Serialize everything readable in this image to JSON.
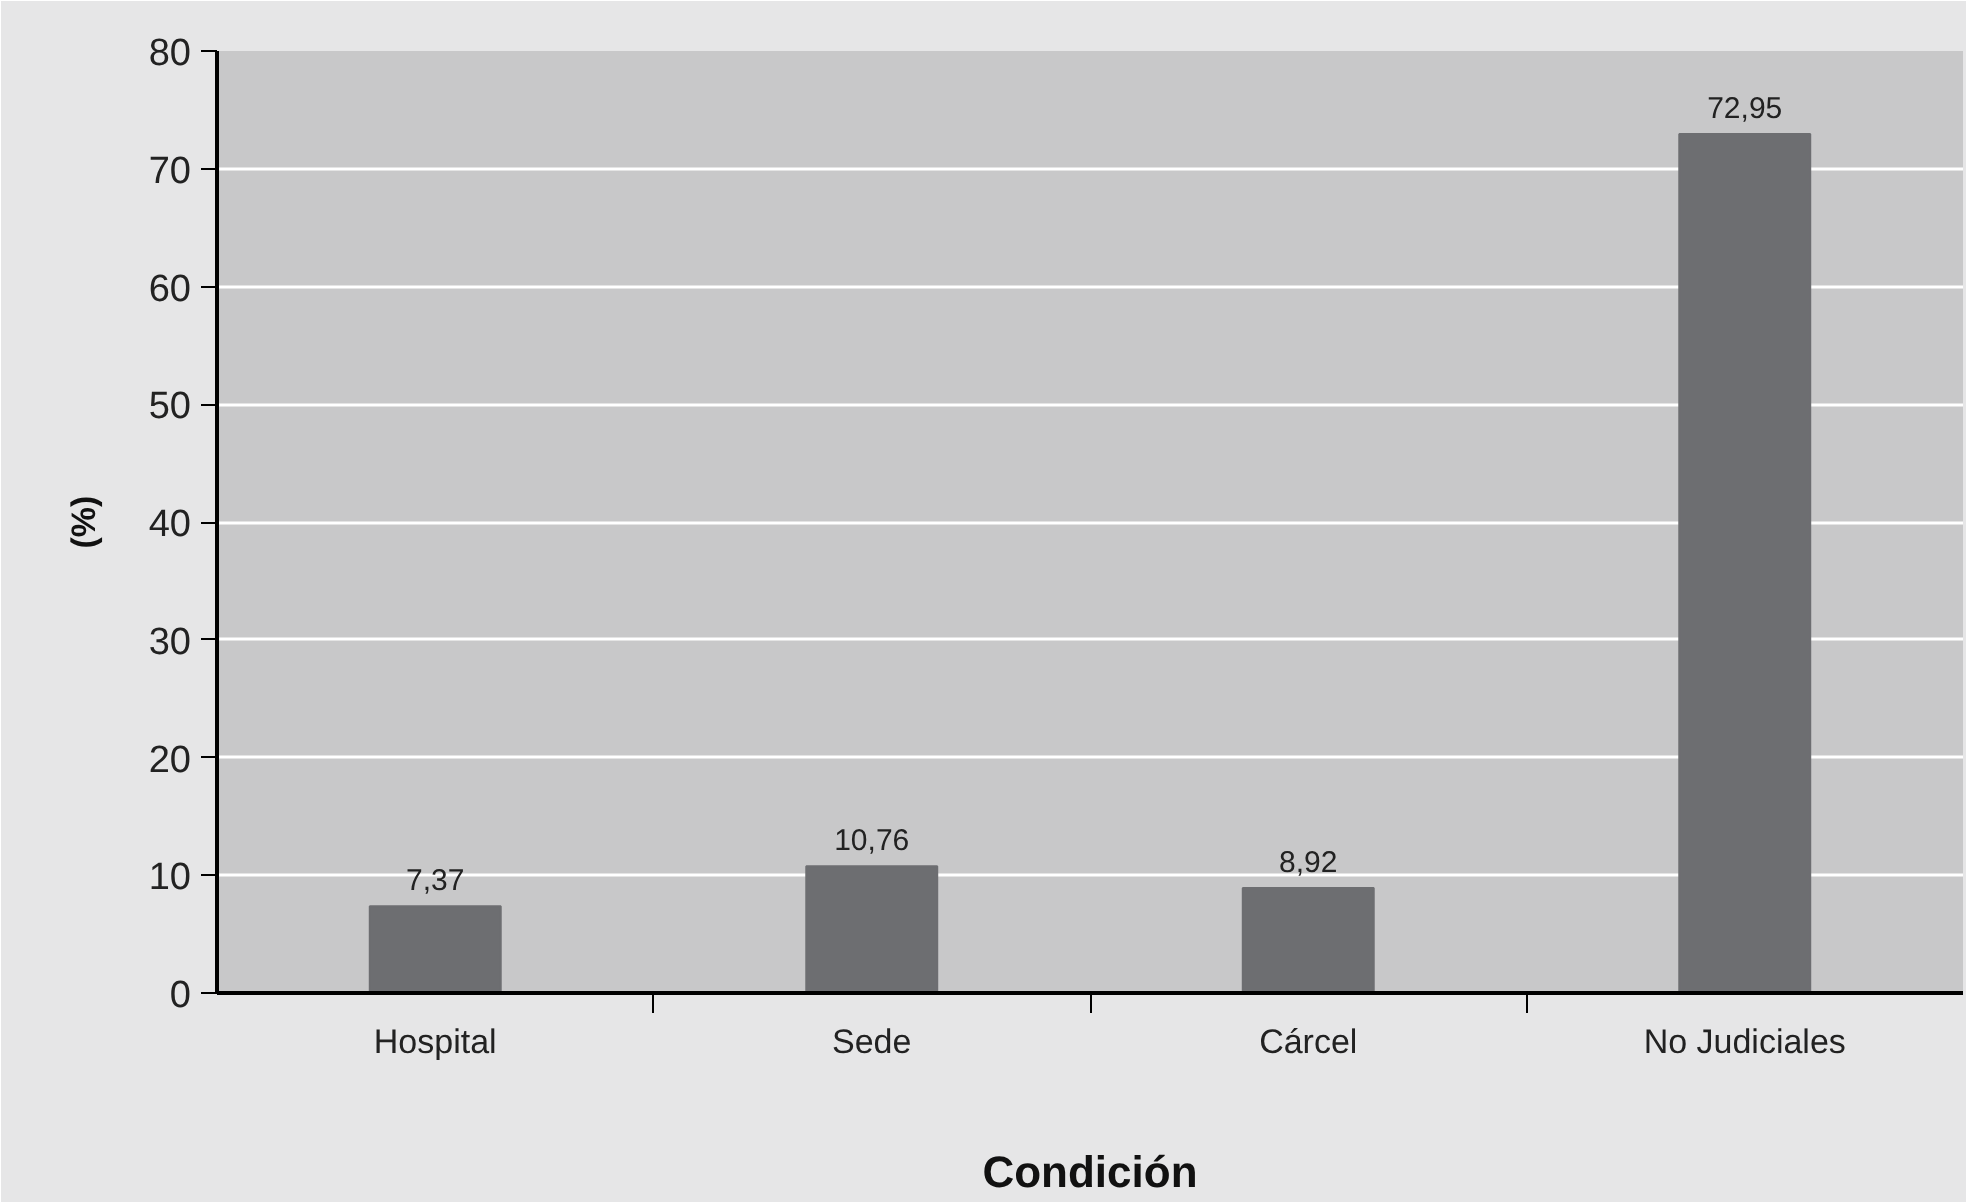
{
  "chart_data": {
    "type": "bar",
    "xlabel": "Condición",
    "ylabel": "(%)",
    "categories": [
      "Hospital",
      "Sede",
      "Cárcel",
      "No Judiciales"
    ],
    "values": [
      7.37,
      10.76,
      8.92,
      72.95
    ],
    "value_labels": [
      "7,37",
      "10,76",
      "8,92",
      "72,95"
    ],
    "color": "#6d6e71",
    "ylim": [
      0,
      80
    ],
    "yticks": [
      0,
      10,
      20,
      30,
      40,
      50,
      60,
      70,
      80
    ],
    "grid": "y"
  }
}
